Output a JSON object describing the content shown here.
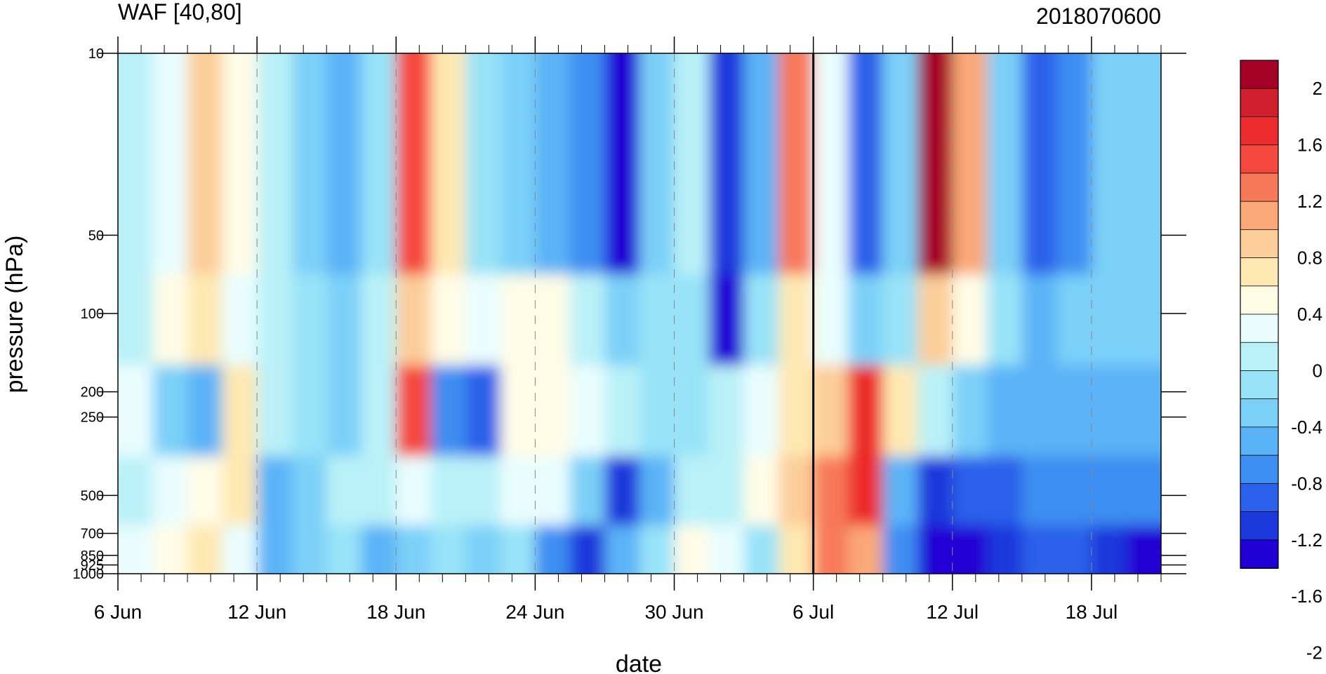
{
  "chart_data": {
    "type": "heatmap",
    "title_left": "WAF [40,80]",
    "title_right": "2018070600",
    "xlabel": "date",
    "ylabel": "pressure (hPa)",
    "x_ticks": [
      "6 Jun",
      "12 Jun",
      "18 Jun",
      "24 Jun",
      "30 Jun",
      "6 Jul",
      "12 Jul",
      "18 Jul"
    ],
    "x_range": [
      "2018-06-06",
      "2018-07-21"
    ],
    "y_scale": "log",
    "y_range": [
      1000,
      10
    ],
    "y_ticks": [
      10,
      50,
      100,
      200,
      250,
      500,
      700,
      850,
      925,
      1000
    ],
    "vertical_line_date": "2018-07-06",
    "grid": "dashed vertical lines at labeled dates",
    "colorbar": {
      "labels": [
        "2",
        "1.6",
        "1.2",
        "0.8",
        "0.4",
        "0",
        "-0.4",
        "-0.8",
        "-1.2",
        "-1.6",
        "-2"
      ],
      "colors": [
        "#A50026",
        "#D11F2D",
        "#EC2C2C",
        "#F6473E",
        "#F7795A",
        "#FAA878",
        "#FCCD99",
        "#FEE8B2",
        "#FFFCE6",
        "#E9FDFE",
        "#BAF1F8",
        "#98E3F8",
        "#7BD0F8",
        "#5BB3F7",
        "#3C8EF2",
        "#2A60EA",
        "#1A38DC",
        "#2100D6"
      ],
      "position": "right"
    },
    "series": [
      {
        "pressure": 50,
        "values": [
          0.0,
          0.2,
          0.8,
          0.4,
          0.0,
          -0.4,
          -0.6,
          -0.2,
          1.4,
          0.6,
          -0.2,
          -0.4,
          -0.6,
          -0.8,
          -1.6,
          -0.4,
          0.0,
          -1.2,
          -0.6,
          1.2,
          0.2,
          -1.0,
          -0.4,
          2.0,
          1.0,
          -0.4,
          -1.0,
          -0.8,
          -0.4,
          -0.4
        ]
      },
      {
        "pressure": 100,
        "values": [
          0.0,
          0.4,
          0.6,
          0.2,
          0.0,
          -0.2,
          -0.4,
          0.0,
          0.8,
          0.4,
          0.2,
          0.4,
          0.4,
          0.0,
          -0.4,
          -0.2,
          -0.2,
          -1.6,
          -0.2,
          0.6,
          0.2,
          -0.4,
          -0.2,
          0.8,
          0.4,
          -0.2,
          -0.6,
          -0.4,
          -0.4,
          -0.4
        ]
      },
      {
        "pressure": 250,
        "values": [
          0.2,
          -0.4,
          -0.6,
          0.6,
          0.0,
          -0.2,
          -0.4,
          0.0,
          1.4,
          -0.8,
          -1.0,
          0.4,
          0.4,
          0.2,
          0.0,
          -0.2,
          -0.2,
          0.0,
          0.2,
          0.6,
          0.8,
          1.6,
          0.6,
          0.0,
          -0.4,
          -0.6,
          -0.6,
          -0.6,
          -0.6,
          -0.6
        ]
      },
      {
        "pressure": 500,
        "values": [
          0.0,
          0.2,
          0.4,
          0.6,
          -0.6,
          -0.4,
          0.0,
          0.0,
          0.2,
          0.0,
          0.0,
          0.2,
          0.2,
          -0.4,
          -1.2,
          -0.6,
          0.0,
          0.0,
          0.4,
          0.8,
          1.2,
          1.6,
          -0.6,
          -1.2,
          -1.0,
          -1.0,
          -0.8,
          -0.8,
          -0.8,
          -0.8
        ]
      },
      {
        "pressure": 850,
        "values": [
          0.2,
          0.4,
          0.6,
          0.2,
          -0.6,
          -0.4,
          -0.2,
          -0.6,
          -0.4,
          -0.2,
          -0.4,
          -0.2,
          -0.8,
          -1.2,
          -0.6,
          -0.2,
          0.4,
          0.2,
          -0.2,
          0.6,
          1.2,
          1.0,
          -0.8,
          -1.6,
          -1.4,
          -1.2,
          -1.0,
          -1.0,
          -1.2,
          -1.4
        ]
      }
    ]
  }
}
